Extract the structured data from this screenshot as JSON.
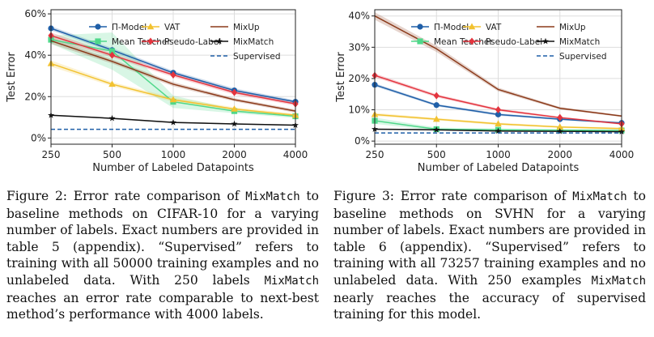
{
  "chart_data": [
    {
      "type": "line",
      "ylabel": "Test Error",
      "xlabel": "Number of Labeled Datapoints",
      "x": [
        250,
        500,
        1000,
        2000,
        4000
      ],
      "x_ticks": [
        "250",
        "500",
        "1000",
        "2000",
        "4000"
      ],
      "ylim": [
        -3,
        62
      ],
      "y_ticks": [
        0,
        20,
        40,
        60
      ],
      "y_tick_labels": [
        "0%",
        "20%",
        "40%",
        "60%"
      ],
      "grid": true,
      "legend": "top, three columns",
      "series": [
        {
          "name": "Π-Model",
          "color": "#1f5fa8",
          "marker": "circle",
          "values": [
            53.0,
            42.5,
            31.5,
            23.0,
            17.5
          ],
          "band": [
            1.0,
            1.0,
            1.0,
            1.0,
            0.8
          ]
        },
        {
          "name": "Mean Teacher",
          "color": "#4fd88a",
          "marker": "square",
          "values": [
            47.5,
            42.0,
            17.5,
            13.0,
            10.5
          ],
          "band": [
            2.0,
            9.0,
            3.0,
            1.0,
            0.8
          ]
        },
        {
          "name": "VAT",
          "color": "#f2c230",
          "marker": "triangle",
          "values": [
            36.0,
            26.0,
            18.5,
            14.0,
            11.0
          ],
          "band": [
            1.5,
            1.0,
            1.0,
            0.8,
            0.8
          ]
        },
        {
          "name": "Pseudo-Label",
          "color": "#e3343e",
          "marker": "diamond",
          "values": [
            49.5,
            40.0,
            30.5,
            22.0,
            16.5
          ],
          "band": [
            1.5,
            1.0,
            1.0,
            1.0,
            0.8
          ]
        },
        {
          "name": "MixUp",
          "color": "#8b3a1a",
          "marker": "none",
          "values": [
            47.0,
            37.0,
            26.0,
            18.5,
            13.0
          ],
          "band": [
            1.5,
            1.0,
            1.0,
            0.8,
            0.8
          ]
        },
        {
          "name": "MixMatch",
          "color": "#111111",
          "marker": "star",
          "values": [
            11.0,
            9.5,
            7.5,
            6.8,
            6.2
          ],
          "band": [
            0.3,
            0.3,
            0.3,
            0.3,
            0.3
          ]
        },
        {
          "name": "Supervised",
          "color": "#1f5fa8",
          "marker": "none",
          "dashed": true,
          "values": [
            4.2,
            4.2,
            4.2,
            4.2,
            4.2
          ]
        }
      ]
    },
    {
      "type": "line",
      "ylabel": "Test Error",
      "xlabel": "Number of Labeled Datapoints",
      "x": [
        250,
        500,
        1000,
        2000,
        4000
      ],
      "x_ticks": [
        "250",
        "500",
        "1000",
        "2000",
        "4000"
      ],
      "ylim": [
        -1,
        42
      ],
      "y_ticks": [
        0,
        10,
        20,
        30,
        40
      ],
      "y_tick_labels": [
        "0%",
        "10%",
        "20%",
        "30%",
        "40%"
      ],
      "grid": true,
      "legend": "top, three columns",
      "series": [
        {
          "name": "Π-Model",
          "color": "#1f5fa8",
          "marker": "circle",
          "values": [
            18.0,
            11.5,
            8.5,
            7.0,
            5.8
          ],
          "band": [
            0.5,
            0.4,
            0.4,
            0.3,
            0.3
          ]
        },
        {
          "name": "Mean Teacher",
          "color": "#4fd88a",
          "marker": "square",
          "values": [
            6.5,
            3.8,
            3.6,
            3.5,
            3.4
          ],
          "band": [
            1.0,
            0.5,
            0.4,
            0.3,
            0.3
          ]
        },
        {
          "name": "VAT",
          "color": "#f2c230",
          "marker": "triangle",
          "values": [
            8.5,
            7.0,
            5.5,
            4.5,
            4.0
          ],
          "band": [
            0.5,
            0.4,
            0.4,
            0.3,
            0.3
          ]
        },
        {
          "name": "Pseudo-Label",
          "color": "#e3343e",
          "marker": "diamond",
          "values": [
            21.0,
            14.5,
            10.0,
            7.5,
            5.5
          ],
          "band": [
            0.6,
            0.5,
            0.4,
            0.3,
            0.3
          ]
        },
        {
          "name": "MixUp",
          "color": "#8b3a1a",
          "marker": "none",
          "values": [
            40.0,
            29.5,
            16.5,
            10.5,
            8.0
          ],
          "band": [
            1.2,
            1.0,
            0.6,
            0.4,
            0.3
          ]
        },
        {
          "name": "MixMatch",
          "color": "#111111",
          "marker": "star",
          "values": [
            3.8,
            3.6,
            3.2,
            3.1,
            3.0
          ],
          "band": [
            0.2,
            0.2,
            0.2,
            0.2,
            0.2
          ]
        },
        {
          "name": "Supervised",
          "color": "#1f5fa8",
          "marker": "none",
          "dashed": true,
          "values": [
            2.6,
            2.6,
            2.6,
            2.6,
            2.6
          ]
        }
      ]
    }
  ],
  "captions": [
    {
      "label": "Figure 2:",
      "p1": " Error rate comparison of ",
      "method": "MixMatch",
      "p2": " to baseline methods on CIFAR-10 for a varying number of labels. Exact numbers are provided in table 5 (appendix). “Supervised” refers to training with all ",
      "n1": "50000",
      "p3": " training examples and no unlabeled data. With ",
      "n2": "250",
      "p4": " labels ",
      "method2": "MixMatch",
      "p5": " reaches an error rate comparable to next-best method’s performance with ",
      "n3": "4000",
      "p6": " labels."
    },
    {
      "label": "Figure 3:",
      "p1": " Error rate comparison of ",
      "method": "MixMatch",
      "p2": " to baseline methods on SVHN for a varying number of labels. Exact numbers are provided in table 6 (appendix). “Supervised” refers to training with all ",
      "n1": "73257",
      "p3": " training examples and no unlabeled data. With ",
      "n2": "250",
      "p4": " examples ",
      "method2": "MixMatch",
      "p5": " nearly reaches the accuracy of supervised training for this model.",
      "n3": "",
      "p6": ""
    }
  ]
}
